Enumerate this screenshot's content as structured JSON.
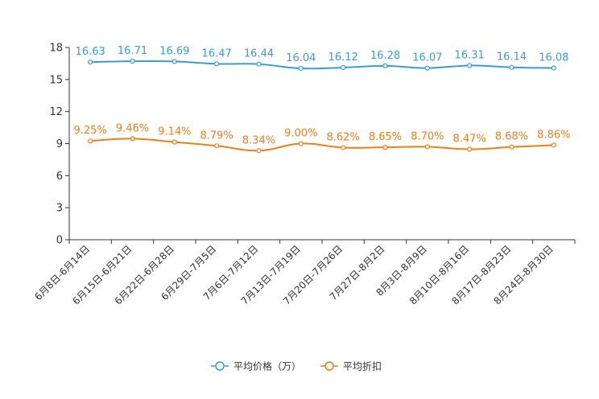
{
  "chart_data": {
    "type": "line",
    "categories": [
      "6月8日-6月14日",
      "6月15日-6月21日",
      "6月22日-6月28日",
      "6月29日-7月5日",
      "7月6日-7月12日",
      "7月13日-7月19日",
      "7月20日-7月26日",
      "7月27日-8月2日",
      "8月3日-8月9日",
      "8月10日-8月16日",
      "8月17日-8月23日",
      "8月24日-8月30日"
    ],
    "ylim": [
      0,
      18
    ],
    "yticks": [
      0,
      3,
      6,
      9,
      12,
      15,
      18
    ],
    "series": [
      {
        "name": "平均价格（万）",
        "color": "#3a9bd5",
        "values": [
          16.63,
          16.71,
          16.69,
          16.47,
          16.44,
          16.04,
          16.12,
          16.28,
          16.07,
          16.31,
          16.14,
          16.08
        ],
        "labels": [
          "16.63",
          "16.71",
          "16.69",
          "16.47",
          "16.44",
          "16.04",
          "16.12",
          "16.28",
          "16.07",
          "16.31",
          "16.14",
          "16.08"
        ]
      },
      {
        "name": "平均折扣",
        "color": "#f07d19",
        "values": [
          9.25,
          9.46,
          9.14,
          8.79,
          8.34,
          9.0,
          8.62,
          8.65,
          8.7,
          8.47,
          8.68,
          8.86
        ],
        "labels": [
          "9.25%",
          "9.46%",
          "9.14%",
          "8.79%",
          "8.34%",
          "9.00%",
          "8.62%",
          "8.65%",
          "8.70%",
          "8.47%",
          "8.68%",
          "8.86%"
        ]
      }
    ],
    "legend_position": "bottom-center",
    "grid": false
  }
}
